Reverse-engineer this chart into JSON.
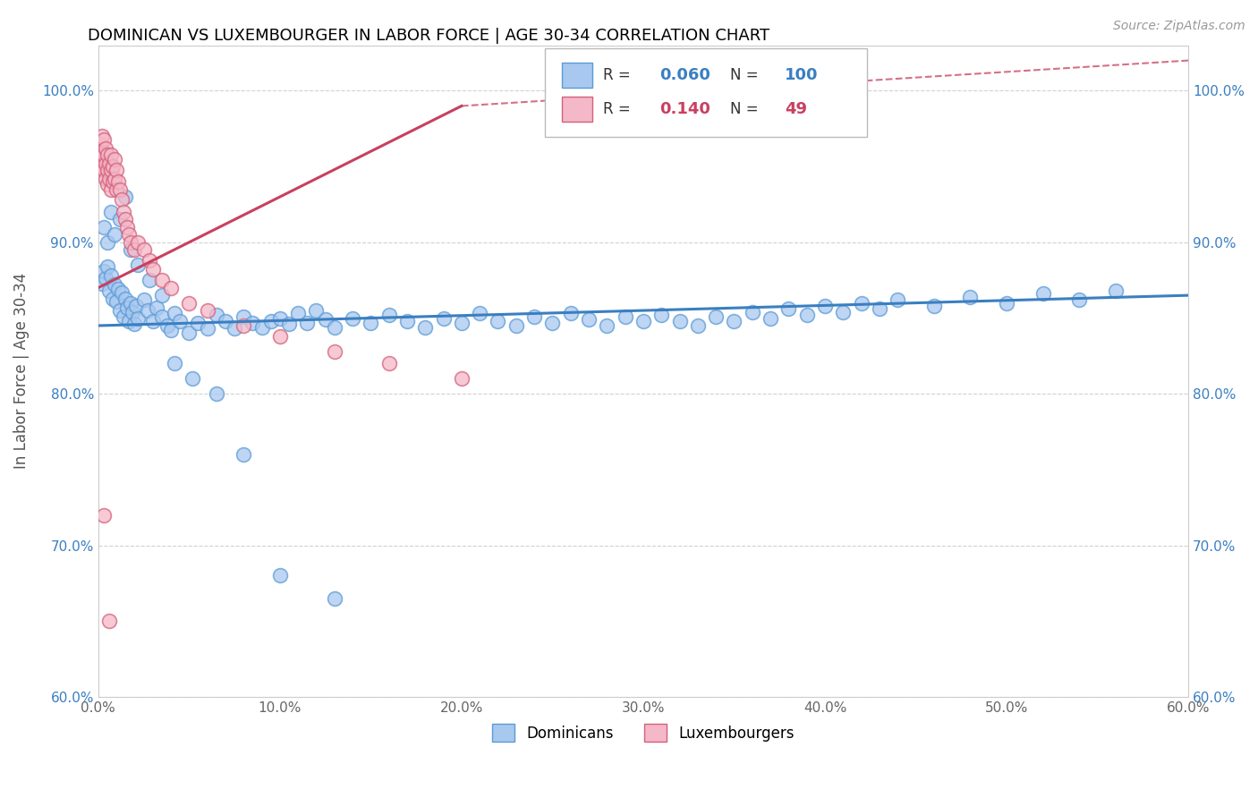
{
  "title": "DOMINICAN VS LUXEMBOURGER IN LABOR FORCE | AGE 30-34 CORRELATION CHART",
  "source": "Source: ZipAtlas.com",
  "ylabel": "In Labor Force | Age 30-34",
  "xlim": [
    0.0,
    0.6
  ],
  "ylim": [
    0.6,
    1.03
  ],
  "xticks": [
    0.0,
    0.1,
    0.2,
    0.3,
    0.4,
    0.5,
    0.6
  ],
  "xticklabels": [
    "0.0%",
    "10.0%",
    "20.0%",
    "30.0%",
    "40.0%",
    "50.0%",
    "60.0%"
  ],
  "yticks": [
    0.6,
    0.7,
    0.8,
    0.9,
    1.0
  ],
  "yticklabels": [
    "60.0%",
    "70.0%",
    "80.0%",
    "90.0%",
    "100.0%"
  ],
  "R_dominican": 0.06,
  "N_dominican": 100,
  "R_luxembourger": 0.14,
  "N_luxembourger": 49,
  "color_dominican_fill": "#a8c8f0",
  "color_dominican_edge": "#5b9bd5",
  "color_luxembourger_fill": "#f4b8c8",
  "color_luxembourger_edge": "#d4607a",
  "color_trend_dominican": "#3a7fc1",
  "color_trend_luxembourger": "#c84060",
  "background_color": "#ffffff",
  "grid_color": "#cccccc",
  "dominican_x": [
    0.002,
    0.003,
    0.004,
    0.005,
    0.006,
    0.007,
    0.008,
    0.009,
    0.01,
    0.011,
    0.012,
    0.013,
    0.014,
    0.015,
    0.016,
    0.017,
    0.018,
    0.019,
    0.02,
    0.021,
    0.022,
    0.025,
    0.027,
    0.03,
    0.032,
    0.035,
    0.038,
    0.04,
    0.042,
    0.045,
    0.05,
    0.055,
    0.06,
    0.065,
    0.07,
    0.075,
    0.08,
    0.085,
    0.09,
    0.095,
    0.1,
    0.105,
    0.11,
    0.115,
    0.12,
    0.125,
    0.13,
    0.14,
    0.15,
    0.16,
    0.17,
    0.18,
    0.19,
    0.2,
    0.21,
    0.22,
    0.23,
    0.24,
    0.25,
    0.26,
    0.27,
    0.28,
    0.29,
    0.3,
    0.31,
    0.32,
    0.33,
    0.34,
    0.35,
    0.36,
    0.37,
    0.38,
    0.39,
    0.4,
    0.41,
    0.42,
    0.43,
    0.44,
    0.46,
    0.48,
    0.5,
    0.52,
    0.54,
    0.56,
    0.003,
    0.005,
    0.007,
    0.009,
    0.012,
    0.015,
    0.018,
    0.022,
    0.028,
    0.035,
    0.042,
    0.052,
    0.065,
    0.08,
    0.1,
    0.13
  ],
  "dominican_y": [
    0.873,
    0.881,
    0.876,
    0.884,
    0.868,
    0.878,
    0.863,
    0.872,
    0.861,
    0.869,
    0.855,
    0.867,
    0.851,
    0.863,
    0.857,
    0.848,
    0.86,
    0.854,
    0.846,
    0.858,
    0.85,
    0.862,
    0.855,
    0.848,
    0.857,
    0.851,
    0.845,
    0.842,
    0.853,
    0.848,
    0.84,
    0.847,
    0.843,
    0.852,
    0.848,
    0.843,
    0.851,
    0.847,
    0.844,
    0.848,
    0.85,
    0.846,
    0.853,
    0.847,
    0.855,
    0.849,
    0.844,
    0.85,
    0.847,
    0.852,
    0.848,
    0.844,
    0.85,
    0.847,
    0.853,
    0.848,
    0.845,
    0.851,
    0.847,
    0.853,
    0.849,
    0.845,
    0.851,
    0.848,
    0.852,
    0.848,
    0.845,
    0.851,
    0.848,
    0.854,
    0.85,
    0.856,
    0.852,
    0.858,
    0.854,
    0.86,
    0.856,
    0.862,
    0.858,
    0.864,
    0.86,
    0.866,
    0.862,
    0.868,
    0.91,
    0.9,
    0.92,
    0.905,
    0.915,
    0.93,
    0.895,
    0.885,
    0.875,
    0.865,
    0.82,
    0.81,
    0.8,
    0.76,
    0.68,
    0.665
  ],
  "luxembourger_x": [
    0.001,
    0.001,
    0.002,
    0.002,
    0.002,
    0.003,
    0.003,
    0.003,
    0.004,
    0.004,
    0.004,
    0.005,
    0.005,
    0.005,
    0.006,
    0.006,
    0.007,
    0.007,
    0.007,
    0.008,
    0.008,
    0.009,
    0.009,
    0.01,
    0.01,
    0.011,
    0.012,
    0.013,
    0.014,
    0.015,
    0.016,
    0.017,
    0.018,
    0.02,
    0.022,
    0.025,
    0.028,
    0.03,
    0.035,
    0.04,
    0.05,
    0.06,
    0.08,
    0.1,
    0.13,
    0.16,
    0.2,
    0.003,
    0.006
  ],
  "luxembourger_y": [
    0.965,
    0.955,
    0.97,
    0.96,
    0.95,
    0.968,
    0.958,
    0.948,
    0.962,
    0.952,
    0.942,
    0.958,
    0.948,
    0.938,
    0.952,
    0.942,
    0.958,
    0.948,
    0.935,
    0.95,
    0.94,
    0.955,
    0.942,
    0.948,
    0.935,
    0.94,
    0.935,
    0.928,
    0.92,
    0.915,
    0.91,
    0.905,
    0.9,
    0.895,
    0.9,
    0.895,
    0.888,
    0.882,
    0.875,
    0.87,
    0.86,
    0.855,
    0.845,
    0.838,
    0.828,
    0.82,
    0.81,
    0.72,
    0.65
  ],
  "trend_dom_x0": 0.0,
  "trend_dom_y0": 0.845,
  "trend_dom_x1": 0.6,
  "trend_dom_y1": 0.865,
  "trend_lux_solid_x0": 0.0,
  "trend_lux_solid_y0": 0.87,
  "trend_lux_solid_x1": 0.2,
  "trend_lux_solid_y1": 0.99,
  "trend_lux_dash_x0": 0.2,
  "trend_lux_dash_y0": 0.99,
  "trend_lux_dash_x1": 0.6,
  "trend_lux_dash_y1": 1.02
}
